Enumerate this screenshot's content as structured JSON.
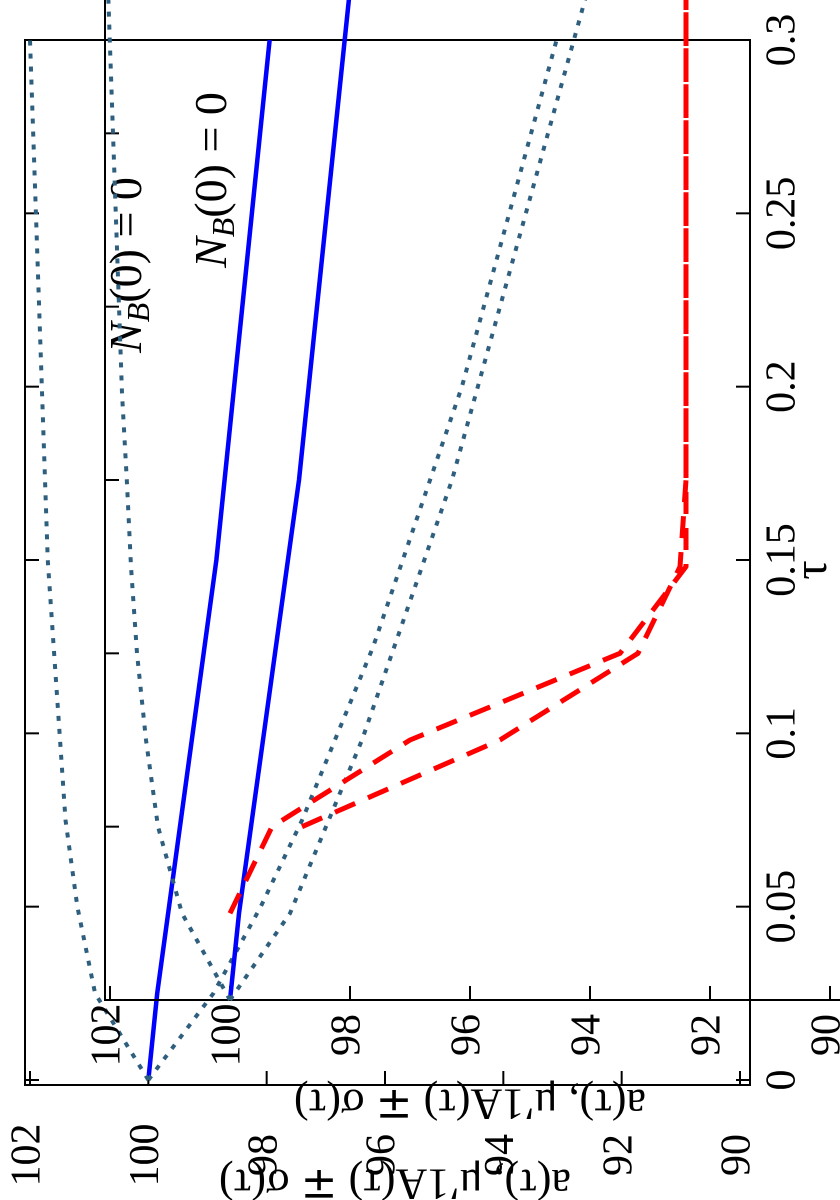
{
  "chart_data": [
    {
      "type": "line",
      "xlabel": "τ",
      "ylabel": "a(τ), μ′1A(τ) ∓ σ(τ)",
      "x": [
        0,
        0.025,
        0.05,
        0.075,
        0.1,
        0.125,
        0.15,
        0.175,
        0.2,
        0.225,
        0.25,
        0.275,
        0.3
      ],
      "xlim": [
        0,
        0.3
      ],
      "xticks": [
        0,
        0.05,
        0.1,
        0.15,
        0.2,
        0.25,
        0.3
      ],
      "ylim": [
        90,
        102
      ],
      "yticks": [
        90,
        92,
        94,
        96,
        98,
        100,
        102
      ],
      "annotations": [
        {
          "text": "N",
          "sub": "B",
          "tail": "(0) = 0"
        }
      ],
      "series": [
        {
          "color": "#0000ff",
          "dash": "solid",
          "values": [
            100,
            99.85,
            99.65,
            99.45,
            99.25,
            99.05,
            98.85,
            98.7,
            98.55,
            98.4,
            98.25,
            98.1,
            97.95
          ]
        },
        {
          "color": "#2f5f7f",
          "dash": "dotted",
          "values": [
            100,
            100.9,
            101.2,
            101.4,
            101.5,
            101.6,
            101.7,
            101.75,
            101.8,
            101.85,
            101.9,
            101.95,
            102
          ]
        },
        {
          "color": "#2f5f7f",
          "dash": "dotted",
          "values": [
            100,
            98.9,
            98.1,
            97.4,
            96.8,
            96.2,
            95.7,
            95.2,
            94.7,
            94.3,
            93.9,
            93.5,
            93.1
          ]
        }
      ]
    },
    {
      "type": "line",
      "ylabel": "a(τ), μ′1A(τ) ∓ σ(τ)",
      "x": [
        0,
        0.025,
        0.05,
        0.075,
        0.1,
        0.125,
        0.15,
        0.175,
        0.2,
        0.225,
        0.25,
        0.275,
        0.3
      ],
      "xlim": [
        0,
        0.3
      ],
      "xticks": [
        0,
        0.05,
        0.1,
        0.15,
        0.2,
        0.25,
        0.3
      ],
      "ylim": [
        90,
        102
      ],
      "yticks": [
        90,
        92,
        94,
        96,
        98,
        100,
        102
      ],
      "annotations": [
        {
          "text": "N",
          "sub": "B",
          "tail": "(0) = 0"
        }
      ],
      "series": [
        {
          "color": "#0000ff",
          "dash": "solid",
          "values": [
            100,
            99.85,
            99.65,
            99.45,
            99.25,
            99.05,
            98.85,
            98.7,
            98.55,
            98.4,
            98.25,
            98.1,
            97.95
          ]
        },
        {
          "color": "#2f5f7f",
          "dash": "dotted",
          "values": [
            100,
            100.8,
            101.2,
            101.4,
            101.55,
            101.65,
            101.72,
            101.8,
            101.85,
            101.9,
            101.95,
            102,
            102.05
          ]
        },
        {
          "color": "#2f5f7f",
          "dash": "dotted",
          "values": [
            100,
            99.0,
            98.4,
            97.8,
            97.3,
            96.8,
            96.3,
            95.9,
            95.5,
            95.1,
            94.7,
            94.3,
            93.9
          ]
        },
        {
          "color": "#ff0000",
          "dash": "dashed",
          "values": [
            null,
            100,
            99.3,
            97,
            93.5,
            92.4,
            92.4,
            92.4,
            92.4,
            92.4,
            92.4,
            92.4,
            92.4
          ]
        },
        {
          "color": "#ff0000",
          "dash": "dashed",
          "values": [
            null,
            null,
            98.8,
            95.5,
            93.2,
            92.5,
            92.4,
            92.4,
            92.4,
            92.4,
            92.4,
            92.4,
            92.4
          ]
        }
      ]
    }
  ]
}
